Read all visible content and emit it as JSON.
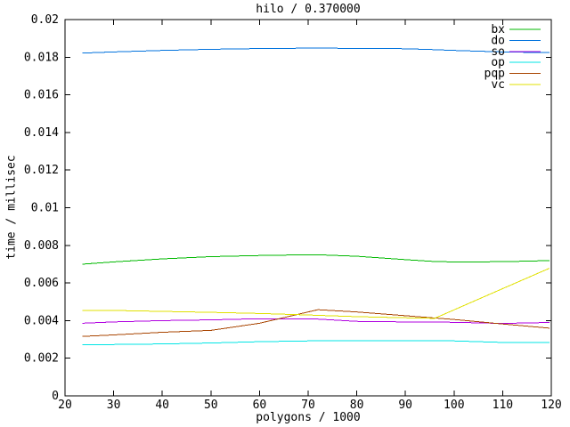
{
  "title": "hilo / 0.370000",
  "chart_data": {
    "type": "line",
    "title": "hilo / 0.370000",
    "xlabel": "polygons / 1000",
    "ylabel": "time / millisec",
    "xlim": [
      20,
      120
    ],
    "ylim": [
      0,
      0.02
    ],
    "x_ticks": [
      20,
      30,
      40,
      50,
      60,
      70,
      80,
      90,
      100,
      110,
      120
    ],
    "x_tick_labels": [
      "20",
      "30",
      "40",
      "50",
      "60",
      "70",
      "80",
      "90",
      "100",
      "110",
      "120"
    ],
    "y_ticks": [
      0,
      0.002,
      0.004,
      0.006,
      0.008,
      0.01,
      0.012,
      0.014,
      0.016,
      0.018,
      0.02
    ],
    "y_tick_labels": [
      "0",
      "0.002",
      "0.004",
      "0.006",
      "0.008",
      "0.01",
      "0.012",
      "0.014",
      "0.016",
      "0.018",
      "0.02"
    ],
    "grid": false,
    "legend_position": "top-right-inside",
    "x": [
      23.6,
      30,
      40,
      50,
      60,
      70,
      72,
      80,
      90,
      96,
      100,
      110,
      119.6
    ],
    "series": [
      {
        "name": "bx",
        "color": "#00b800",
        "values": [
          0.007,
          0.00712,
          0.00728,
          0.0074,
          0.00746,
          0.0075,
          0.0075,
          0.00742,
          0.00724,
          0.00714,
          0.00712,
          0.00713,
          0.00719
        ]
      },
      {
        "name": "do",
        "color": "#0072dd",
        "values": [
          0.01822,
          0.01828,
          0.01836,
          0.01842,
          0.01846,
          0.01848,
          0.01848,
          0.01847,
          0.01845,
          0.0184,
          0.01836,
          0.01828,
          0.01824
        ]
      },
      {
        "name": "so",
        "color": "#b000e0",
        "values": [
          0.00386,
          0.00393,
          0.004,
          0.00404,
          0.0041,
          0.0041,
          0.00408,
          0.00396,
          0.00393,
          0.00392,
          0.00391,
          0.00385,
          0.0039
        ]
      },
      {
        "name": "op",
        "color": "#00e5e5",
        "values": [
          0.00272,
          0.00273,
          0.00276,
          0.00281,
          0.00288,
          0.00292,
          0.00293,
          0.00294,
          0.00294,
          0.00293,
          0.00292,
          0.00284,
          0.00284
        ]
      },
      {
        "name": "pqp",
        "color": "#a84400",
        "values": [
          0.00316,
          0.00324,
          0.00338,
          0.00348,
          0.00386,
          0.00446,
          0.00458,
          0.00446,
          0.00426,
          0.00414,
          0.00406,
          0.00382,
          0.0036
        ]
      },
      {
        "name": "vc",
        "color": "#e0e000",
        "values": [
          0.00455,
          0.00454,
          0.00449,
          0.00444,
          0.00438,
          0.0043,
          0.00428,
          0.00421,
          0.00415,
          0.00412,
          0.00457,
          0.0057,
          0.00678
        ]
      }
    ]
  }
}
